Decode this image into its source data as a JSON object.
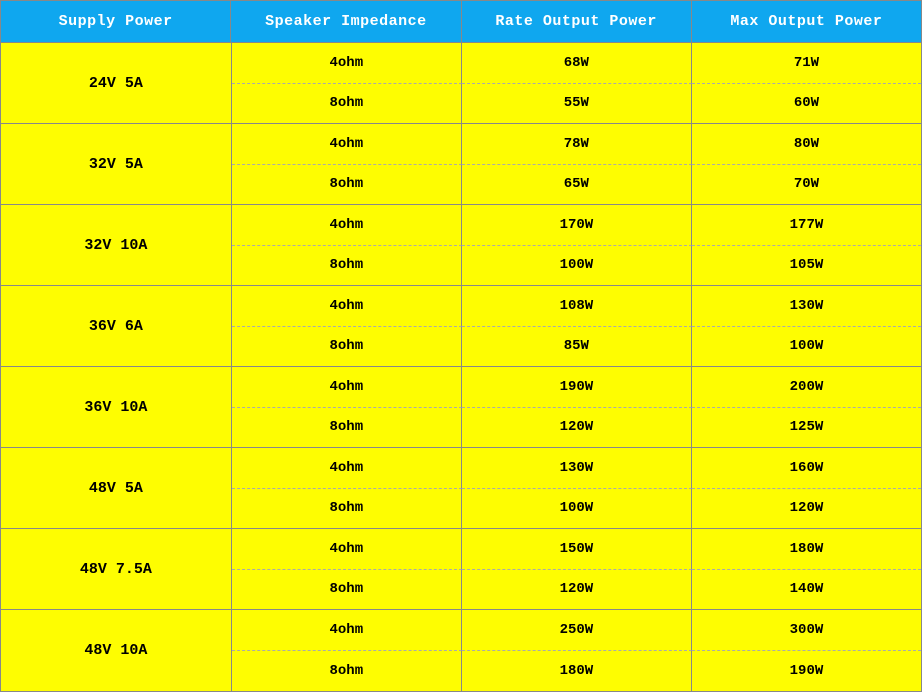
{
  "table": {
    "header_bg": "#0FA7EF",
    "body_bg": "#FEFD01",
    "border_color": "#888888",
    "headers": [
      "Supply Power",
      "Speaker Impedance",
      "Rate Output Power",
      "Max Output Power"
    ],
    "rows": [
      {
        "supply": "24V 5A",
        "entries": [
          {
            "impedance": "4ohm",
            "rate": "68W",
            "max": "71W"
          },
          {
            "impedance": "8ohm",
            "rate": "55W",
            "max": "60W"
          }
        ]
      },
      {
        "supply": "32V 5A",
        "entries": [
          {
            "impedance": "4ohm",
            "rate": "78W",
            "max": "80W"
          },
          {
            "impedance": "8ohm",
            "rate": "65W",
            "max": "70W"
          }
        ]
      },
      {
        "supply": "32V 10A",
        "entries": [
          {
            "impedance": "4ohm",
            "rate": "170W",
            "max": "177W"
          },
          {
            "impedance": "8ohm",
            "rate": "100W",
            "max": "105W"
          }
        ]
      },
      {
        "supply": "36V 6A",
        "entries": [
          {
            "impedance": "4ohm",
            "rate": "108W",
            "max": "130W"
          },
          {
            "impedance": "8ohm",
            "rate": "85W",
            "max": "100W"
          }
        ]
      },
      {
        "supply": "36V 10A",
        "entries": [
          {
            "impedance": "4ohm",
            "rate": "190W",
            "max": "200W"
          },
          {
            "impedance": "8ohm",
            "rate": "120W",
            "max": "125W"
          }
        ]
      },
      {
        "supply": "48V 5A",
        "entries": [
          {
            "impedance": "4ohm",
            "rate": "130W",
            "max": "160W"
          },
          {
            "impedance": "8ohm",
            "rate": "100W",
            "max": "120W"
          }
        ]
      },
      {
        "supply": "48V 7.5A",
        "entries": [
          {
            "impedance": "4ohm",
            "rate": "150W",
            "max": "180W"
          },
          {
            "impedance": "8ohm",
            "rate": "120W",
            "max": "140W"
          }
        ]
      },
      {
        "supply": "48V 10A",
        "entries": [
          {
            "impedance": "4ohm",
            "rate": "250W",
            "max": "300W"
          },
          {
            "impedance": "8ohm",
            "rate": "180W",
            "max": "190W"
          }
        ]
      }
    ]
  }
}
